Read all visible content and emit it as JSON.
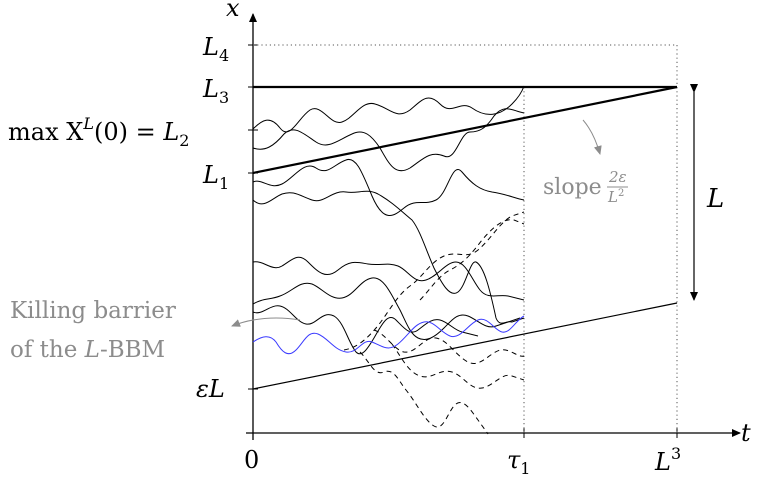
{
  "axes": {
    "x_axis_label": "t",
    "y_axis_label": "x"
  },
  "y_ticks": {
    "L4": {
      "base": "L",
      "sub": "4"
    },
    "L3": {
      "base": "L",
      "sub": "3"
    },
    "L2_prefix": "max X",
    "L2_sup": "L",
    "L2_mid": "(0) = ",
    "L2": {
      "base": "L",
      "sub": "2"
    },
    "L1": {
      "base": "L",
      "sub": "1"
    },
    "epsL": "εL"
  },
  "x_ticks": {
    "zero": "0",
    "tau1": {
      "base": "τ",
      "sub": "1"
    },
    "L3": {
      "base": "L",
      "sup": "3"
    }
  },
  "annotations": {
    "slope_word": "slope",
    "slope_num": "2ε",
    "slope_den": "L",
    "slope_den_sup": "2",
    "interval_label": "L",
    "barrier_line1": "Killing barrier",
    "barrier_line2_pre": "of the ",
    "barrier_line2_italic": "L",
    "barrier_line2_post": "-BBM"
  },
  "colors": {
    "ink": "#000000",
    "annotation": "#8c8c8c",
    "killing_barrier": "#3a3aff",
    "dotted": "#555555"
  }
}
